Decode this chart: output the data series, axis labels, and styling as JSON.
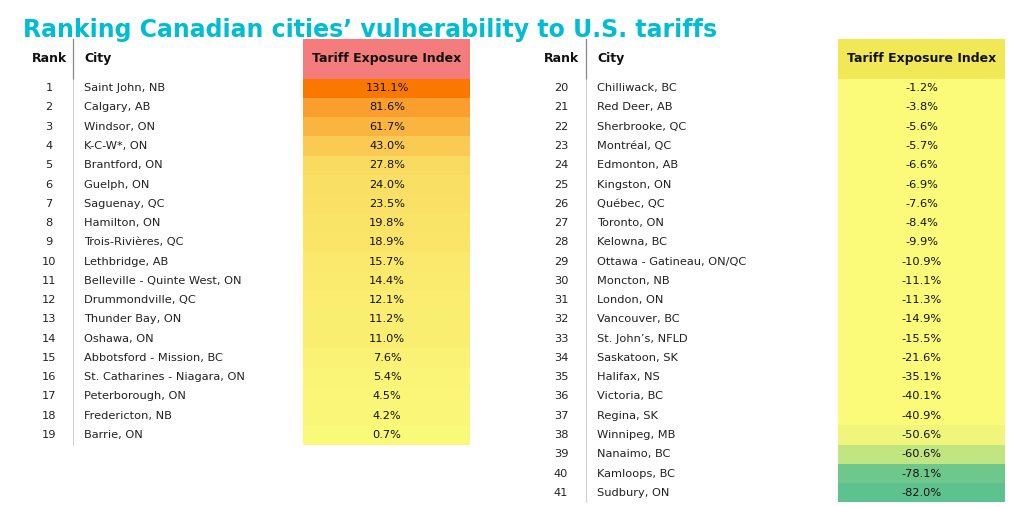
{
  "title": "Ranking Canadian cities’ vulnerability to U.S. tariffs",
  "title_color": "#00bcd4",
  "background_color": "#ffffff",
  "header_label": "Tariff Exposure Index",
  "col_rank": "Rank",
  "col_city": "City",
  "left_ranks": [
    1,
    2,
    3,
    4,
    5,
    6,
    7,
    8,
    9,
    10,
    11,
    12,
    13,
    14,
    15,
    16,
    17,
    18,
    19
  ],
  "left_cities": [
    "Saint John, NB",
    "Calgary, AB",
    "Windsor, ON",
    "K-C-W*, ON",
    "Brantford, ON",
    "Guelph, ON",
    "Saguenay, QC",
    "Hamilton, ON",
    "Trois-Rivières, QC",
    "Lethbridge, AB",
    "Belleville - Quinte West, ON",
    "Drummondville, QC",
    "Thunder Bay, ON",
    "Oshawa, ON",
    "Abbotsford - Mission, BC",
    "St. Catharines - Niagara, ON",
    "Peterborough, ON",
    "Fredericton, NB",
    "Barrie, ON"
  ],
  "left_values": [
    "131.1%",
    "81.6%",
    "61.7%",
    "43.0%",
    "27.8%",
    "24.0%",
    "23.5%",
    "19.8%",
    "18.9%",
    "15.7%",
    "14.4%",
    "12.1%",
    "11.2%",
    "11.0%",
    "7.6%",
    "5.4%",
    "4.5%",
    "4.2%",
    "0.7%"
  ],
  "left_nums": [
    131.1,
    81.6,
    61.7,
    43.0,
    27.8,
    24.0,
    23.5,
    19.8,
    18.9,
    15.7,
    14.4,
    12.1,
    11.2,
    11.0,
    7.6,
    5.4,
    4.5,
    4.2,
    0.7
  ],
  "left_header_bg": "#f47c7c",
  "right_ranks": [
    20,
    21,
    22,
    23,
    24,
    25,
    26,
    27,
    28,
    29,
    30,
    31,
    32,
    33,
    34,
    35,
    36,
    37,
    38,
    39,
    40,
    41
  ],
  "right_cities": [
    "Chilliwack, BC",
    "Red Deer, AB",
    "Sherbrooke, QC",
    "Montréal, QC",
    "Edmonton, AB",
    "Kingston, ON",
    "Québec, QC",
    "Toronto, ON",
    "Kelowna, BC",
    "Ottawa - Gatineau, ON/QC",
    "Moncton, NB",
    "London, ON",
    "Vancouver, BC",
    "St. John’s, NFLD",
    "Saskatoon, SK",
    "Halifax, NS",
    "Victoria, BC",
    "Regina, SK",
    "Winnipeg, MB",
    "Nanaimo, BC",
    "Kamloops, BC",
    "Sudbury, ON"
  ],
  "right_values": [
    "-1.2%",
    "-3.8%",
    "-5.6%",
    "-5.7%",
    "-6.6%",
    "-6.9%",
    "-7.6%",
    "-8.4%",
    "-9.9%",
    "-10.9%",
    "-11.1%",
    "-11.3%",
    "-14.9%",
    "-15.5%",
    "-21.6%",
    "-35.1%",
    "-40.1%",
    "-40.9%",
    "-50.6%",
    "-60.6%",
    "-78.1%",
    "-82.0%"
  ],
  "right_nums": [
    -1.2,
    -3.8,
    -5.6,
    -5.7,
    -6.6,
    -6.9,
    -7.6,
    -8.4,
    -9.9,
    -10.9,
    -11.1,
    -11.3,
    -14.9,
    -15.5,
    -21.6,
    -35.1,
    -40.1,
    -40.9,
    -50.6,
    -60.6,
    -78.1,
    -82.0
  ],
  "right_header_bg": "#f0e855",
  "title_fontsize": 17,
  "header_fontsize": 9,
  "body_fontsize": 8.2
}
